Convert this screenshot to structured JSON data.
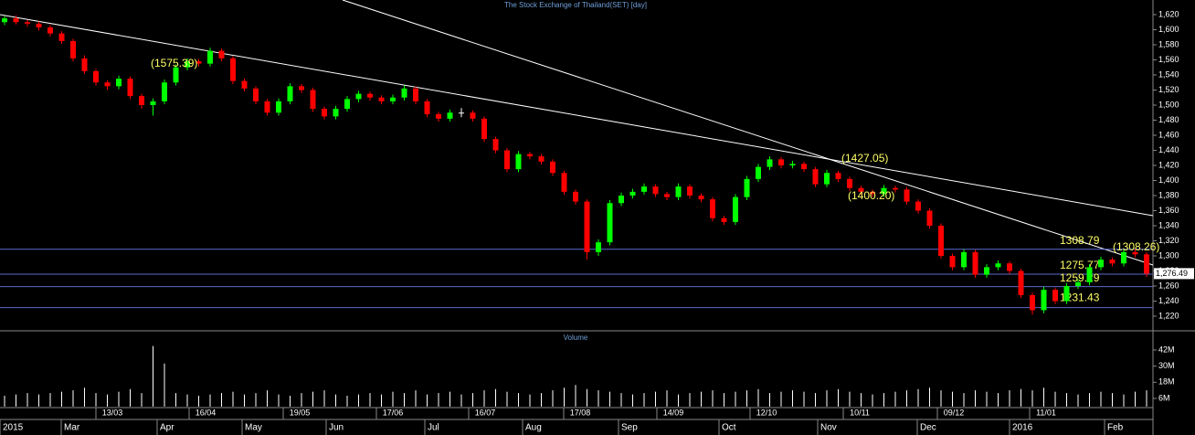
{
  "chart_data": {
    "type": "candlestick",
    "title": "The Stock Exchange of Thailand(SET) [day]",
    "volume_title": "Volume",
    "up_color": "#00ff00",
    "down_color": "#ff0000",
    "candles": [
      [
        1610,
        1618,
        1606,
        1615
      ],
      [
        1615,
        1619,
        1607,
        1610
      ],
      [
        1610,
        1613,
        1604,
        1608
      ],
      [
        1608,
        1611,
        1599,
        1603
      ],
      [
        1603,
        1606,
        1591,
        1595
      ],
      [
        1595,
        1598,
        1581,
        1585
      ],
      [
        1585,
        1588,
        1558,
        1562
      ],
      [
        1562,
        1566,
        1541,
        1545
      ],
      [
        1545,
        1548,
        1526,
        1530
      ],
      [
        1530,
        1533,
        1520,
        1525
      ],
      [
        1525,
        1539,
        1521,
        1535
      ],
      [
        1535,
        1538,
        1508,
        1512
      ],
      [
        1512,
        1515,
        1495,
        1500
      ],
      [
        1500,
        1509,
        1486,
        1505
      ],
      [
        1505,
        1534,
        1501,
        1530
      ],
      [
        1530,
        1554,
        1526,
        1550
      ],
      [
        1550,
        1562,
        1546,
        1558
      ],
      [
        1558,
        1561,
        1551,
        1555
      ],
      [
        1555,
        1576,
        1551,
        1572
      ],
      [
        1572,
        1575,
        1558,
        1562
      ],
      [
        1562,
        1565,
        1528,
        1532
      ],
      [
        1532,
        1535,
        1518,
        1522
      ],
      [
        1522,
        1525,
        1501,
        1505
      ],
      [
        1505,
        1508,
        1486,
        1490
      ],
      [
        1490,
        1509,
        1486,
        1505
      ],
      [
        1505,
        1529,
        1501,
        1525
      ],
      [
        1525,
        1528,
        1516,
        1520
      ],
      [
        1520,
        1523,
        1491,
        1495
      ],
      [
        1495,
        1498,
        1481,
        1485
      ],
      [
        1485,
        1499,
        1481,
        1495
      ],
      [
        1495,
        1512,
        1491,
        1508
      ],
      [
        1508,
        1519,
        1504,
        1515
      ],
      [
        1515,
        1518,
        1506,
        1510
      ],
      [
        1510,
        1513,
        1501,
        1505
      ],
      [
        1505,
        1514,
        1501,
        1510
      ],
      [
        1510,
        1526,
        1506,
        1522
      ],
      [
        1522,
        1525,
        1501,
        1505
      ],
      [
        1505,
        1508,
        1484,
        1488
      ],
      [
        1488,
        1491,
        1478,
        1482
      ],
      [
        1482,
        1494,
        1478,
        1490
      ],
      [
        1490,
        1496,
        1484,
        1490
      ],
      [
        1490,
        1493,
        1478,
        1482
      ],
      [
        1482,
        1485,
        1451,
        1455
      ],
      [
        1455,
        1458,
        1436,
        1440
      ],
      [
        1440,
        1443,
        1411,
        1415
      ],
      [
        1415,
        1439,
        1411,
        1435
      ],
      [
        1435,
        1438,
        1428,
        1432
      ],
      [
        1432,
        1435,
        1421,
        1425
      ],
      [
        1425,
        1428,
        1406,
        1410
      ],
      [
        1410,
        1413,
        1381,
        1385
      ],
      [
        1385,
        1388,
        1368,
        1372
      ],
      [
        1372,
        1375,
        1295,
        1305
      ],
      [
        1305,
        1322,
        1300,
        1318
      ],
      [
        1318,
        1374,
        1314,
        1370
      ],
      [
        1370,
        1384,
        1366,
        1380
      ],
      [
        1380,
        1389,
        1376,
        1385
      ],
      [
        1385,
        1396,
        1381,
        1392
      ],
      [
        1392,
        1395,
        1378,
        1382
      ],
      [
        1382,
        1385,
        1374,
        1378
      ],
      [
        1378,
        1396,
        1374,
        1392
      ],
      [
        1392,
        1395,
        1376,
        1380
      ],
      [
        1380,
        1383,
        1371,
        1375
      ],
      [
        1375,
        1378,
        1346,
        1350
      ],
      [
        1350,
        1353,
        1341,
        1345
      ],
      [
        1345,
        1382,
        1341,
        1378
      ],
      [
        1378,
        1406,
        1374,
        1402
      ],
      [
        1402,
        1422,
        1398,
        1418
      ],
      [
        1418,
        1432,
        1414,
        1428
      ],
      [
        1428,
        1431,
        1416,
        1420
      ],
      [
        1420,
        1426,
        1416,
        1422
      ],
      [
        1422,
        1425,
        1411,
        1415
      ],
      [
        1415,
        1418,
        1391,
        1395
      ],
      [
        1395,
        1414,
        1391,
        1410
      ],
      [
        1410,
        1413,
        1398,
        1402
      ],
      [
        1402,
        1405,
        1386,
        1390
      ],
      [
        1390,
        1393,
        1381,
        1385
      ],
      [
        1385,
        1388,
        1378,
        1382
      ],
      [
        1382,
        1394,
        1378,
        1390
      ],
      [
        1390,
        1393,
        1384,
        1388
      ],
      [
        1388,
        1391,
        1368,
        1372
      ],
      [
        1372,
        1375,
        1356,
        1360
      ],
      [
        1360,
        1363,
        1336,
        1340
      ],
      [
        1340,
        1343,
        1296,
        1300
      ],
      [
        1300,
        1303,
        1281,
        1285
      ],
      [
        1285,
        1309,
        1281,
        1305
      ],
      [
        1305,
        1308,
        1271,
        1275
      ],
      [
        1275,
        1289,
        1271,
        1285
      ],
      [
        1285,
        1294,
        1281,
        1290
      ],
      [
        1290,
        1293,
        1276,
        1280
      ],
      [
        1280,
        1283,
        1244,
        1248
      ],
      [
        1248,
        1251,
        1222,
        1228
      ],
      [
        1228,
        1259,
        1224,
        1255
      ],
      [
        1255,
        1258,
        1236,
        1240
      ],
      [
        1240,
        1264,
        1236,
        1260
      ],
      [
        1260,
        1269,
        1256,
        1265
      ],
      [
        1265,
        1289,
        1261,
        1285
      ],
      [
        1285,
        1299,
        1281,
        1295
      ],
      [
        1295,
        1298,
        1286,
        1290
      ],
      [
        1290,
        1309,
        1286,
        1305
      ],
      [
        1305,
        1309,
        1298,
        1302
      ],
      [
        1302,
        1305,
        1272,
        1276.49
      ]
    ],
    "last_value_label": "1,276.49",
    "volume": [
      8,
      9,
      10,
      9,
      10,
      11,
      12,
      14,
      10,
      9,
      11,
      13,
      10,
      45,
      32,
      10,
      9,
      8,
      9,
      10,
      11,
      9,
      10,
      12,
      9,
      8,
      10,
      11,
      12,
      9,
      8,
      9,
      10,
      9,
      11,
      10,
      12,
      9,
      10,
      11,
      9,
      10,
      12,
      13,
      11,
      10,
      9,
      10,
      12,
      14,
      16,
      13,
      12,
      11,
      10,
      9,
      10,
      11,
      12,
      9,
      10,
      11,
      12,
      10,
      11,
      12,
      13,
      10,
      11,
      12,
      11,
      10,
      12,
      13,
      11,
      10,
      9,
      10,
      11,
      12,
      13,
      14,
      12,
      11,
      10,
      12,
      11,
      10,
      12,
      13,
      12,
      14,
      11,
      10,
      9,
      10,
      11,
      10,
      9,
      11,
      12
    ],
    "ylim": [
      1220,
      1620
    ],
    "yticks": [
      {
        "value": 1620,
        "label": "1,620"
      },
      {
        "value": 1600,
        "label": "1,600"
      },
      {
        "value": 1580,
        "label": "1,580"
      },
      {
        "value": 1560,
        "label": "1,560"
      },
      {
        "value": 1540,
        "label": "1,540"
      },
      {
        "value": 1520,
        "label": "1,520"
      },
      {
        "value": 1500,
        "label": "1,500"
      },
      {
        "value": 1480,
        "label": "1,480"
      },
      {
        "value": 1460,
        "label": "1,460"
      },
      {
        "value": 1440,
        "label": "1,440"
      },
      {
        "value": 1420,
        "label": "1,420"
      },
      {
        "value": 1400,
        "label": "1,400"
      },
      {
        "value": 1380,
        "label": "1,380"
      },
      {
        "value": 1360,
        "label": "1,360"
      },
      {
        "value": 1340,
        "label": "1,340"
      },
      {
        "value": 1320,
        "label": "1,320"
      },
      {
        "value": 1300,
        "label": "1,300"
      },
      {
        "value": 1280,
        "label": "1,280"
      },
      {
        "value": 1260,
        "label": "1,260"
      },
      {
        "value": 1240,
        "label": "1,240"
      },
      {
        "value": 1220,
        "label": "1,220"
      }
    ],
    "volume_ticks": [
      {
        "value": 42,
        "label": "42M"
      },
      {
        "value": 30,
        "label": "30M"
      },
      {
        "value": 18,
        "label": "18M"
      },
      {
        "value": 6,
        "label": "6M"
      }
    ],
    "levels": [
      1308.79,
      1275.77,
      1259.29,
      1231.43
    ],
    "level_color": "#5a6acd",
    "annotations": [
      "(1575.39)",
      "(1427.05)",
      "(1400.20)",
      "(1308.26)"
    ],
    "x_labels_top": [
      "13/03",
      "16/04",
      "19/05",
      "17/06",
      "16/07",
      "17/08",
      "14/09",
      "12/10",
      "10/11",
      "09/12",
      "11/01"
    ],
    "x_labels_bottom": [
      "2015",
      "Mar",
      "Apr",
      "May",
      "Jun",
      "Jul",
      "Aug",
      "Sep",
      "Oct",
      "Nov",
      "Dec",
      "2016",
      "Feb"
    ]
  }
}
